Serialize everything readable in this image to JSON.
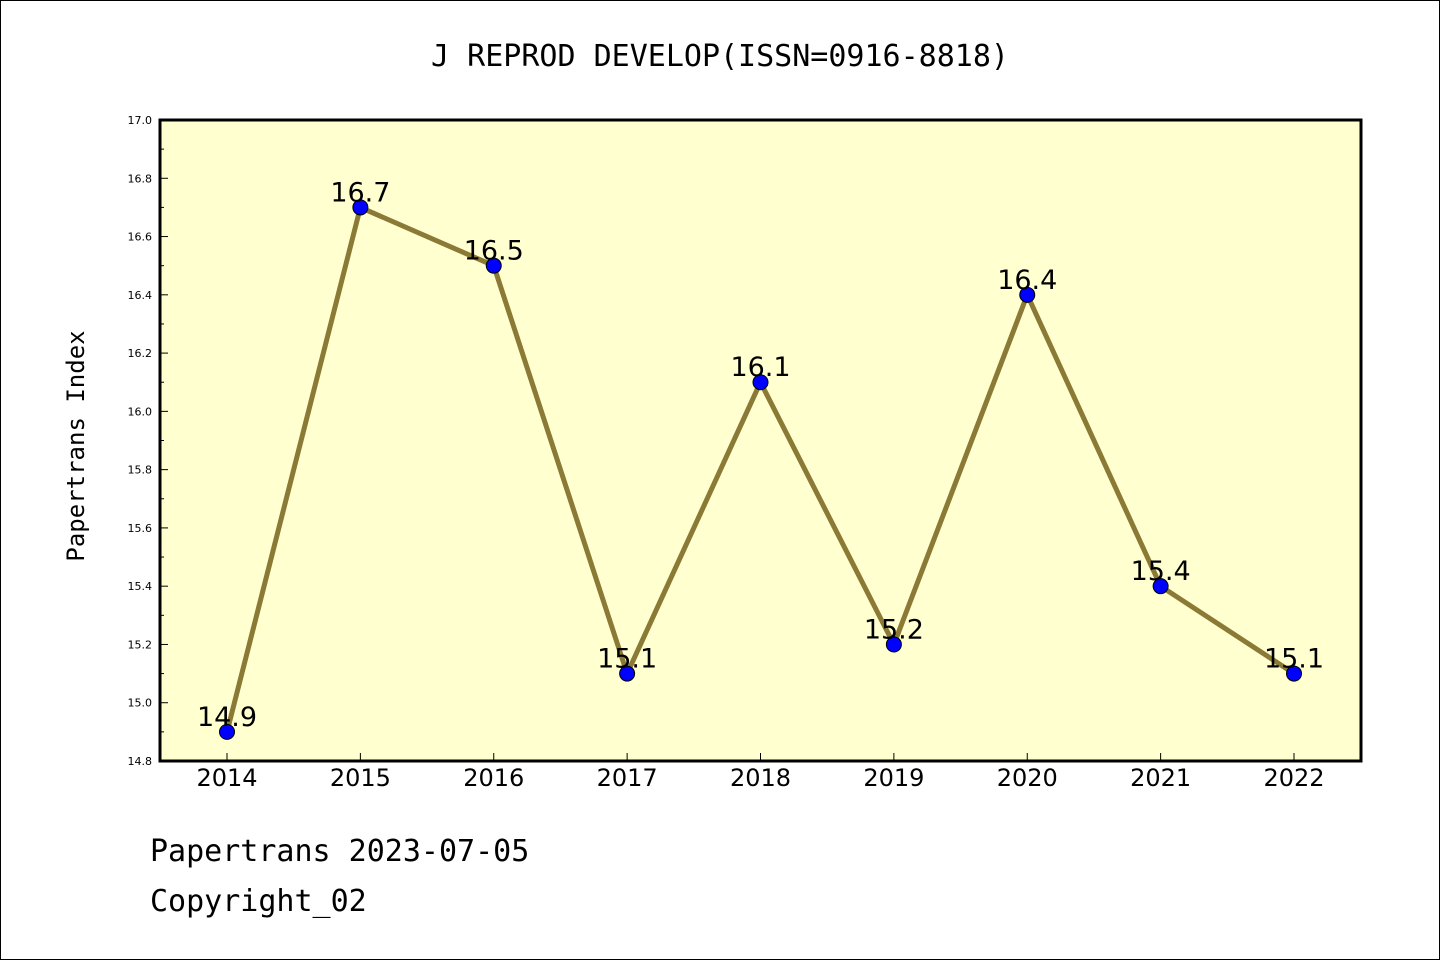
{
  "chart_data": {
    "type": "line",
    "title": "J REPROD DEVELOP(ISSN=0916-8818)",
    "xlabel": "",
    "ylabel": "Papertrans Index",
    "categories": [
      "2014",
      "2015",
      "2016",
      "2017",
      "2018",
      "2019",
      "2020",
      "2021",
      "2022"
    ],
    "series": [
      {
        "values": [
          14.9,
          16.7,
          16.5,
          15.1,
          16.1,
          15.2,
          16.4,
          15.4,
          15.1
        ],
        "labels": [
          "14.9",
          "16.7",
          "16.5",
          "15.1",
          "16.1",
          "15.2",
          "16.4",
          "15.4",
          "15.1"
        ]
      }
    ],
    "ylim": [
      14.8,
      17.0
    ],
    "yticks": [
      "14.8",
      "15.0",
      "15.2",
      "15.4",
      "15.6",
      "15.8",
      "16.0",
      "16.2",
      "16.4",
      "16.6",
      "16.8",
      "17.0"
    ],
    "grid": false,
    "colors": {
      "plot_background": "#ffffd0",
      "line": "#8b7a35",
      "marker": "#0000ff"
    }
  },
  "footer": {
    "line1": "Papertrans 2023-07-05",
    "line2": "Copyright_02"
  }
}
